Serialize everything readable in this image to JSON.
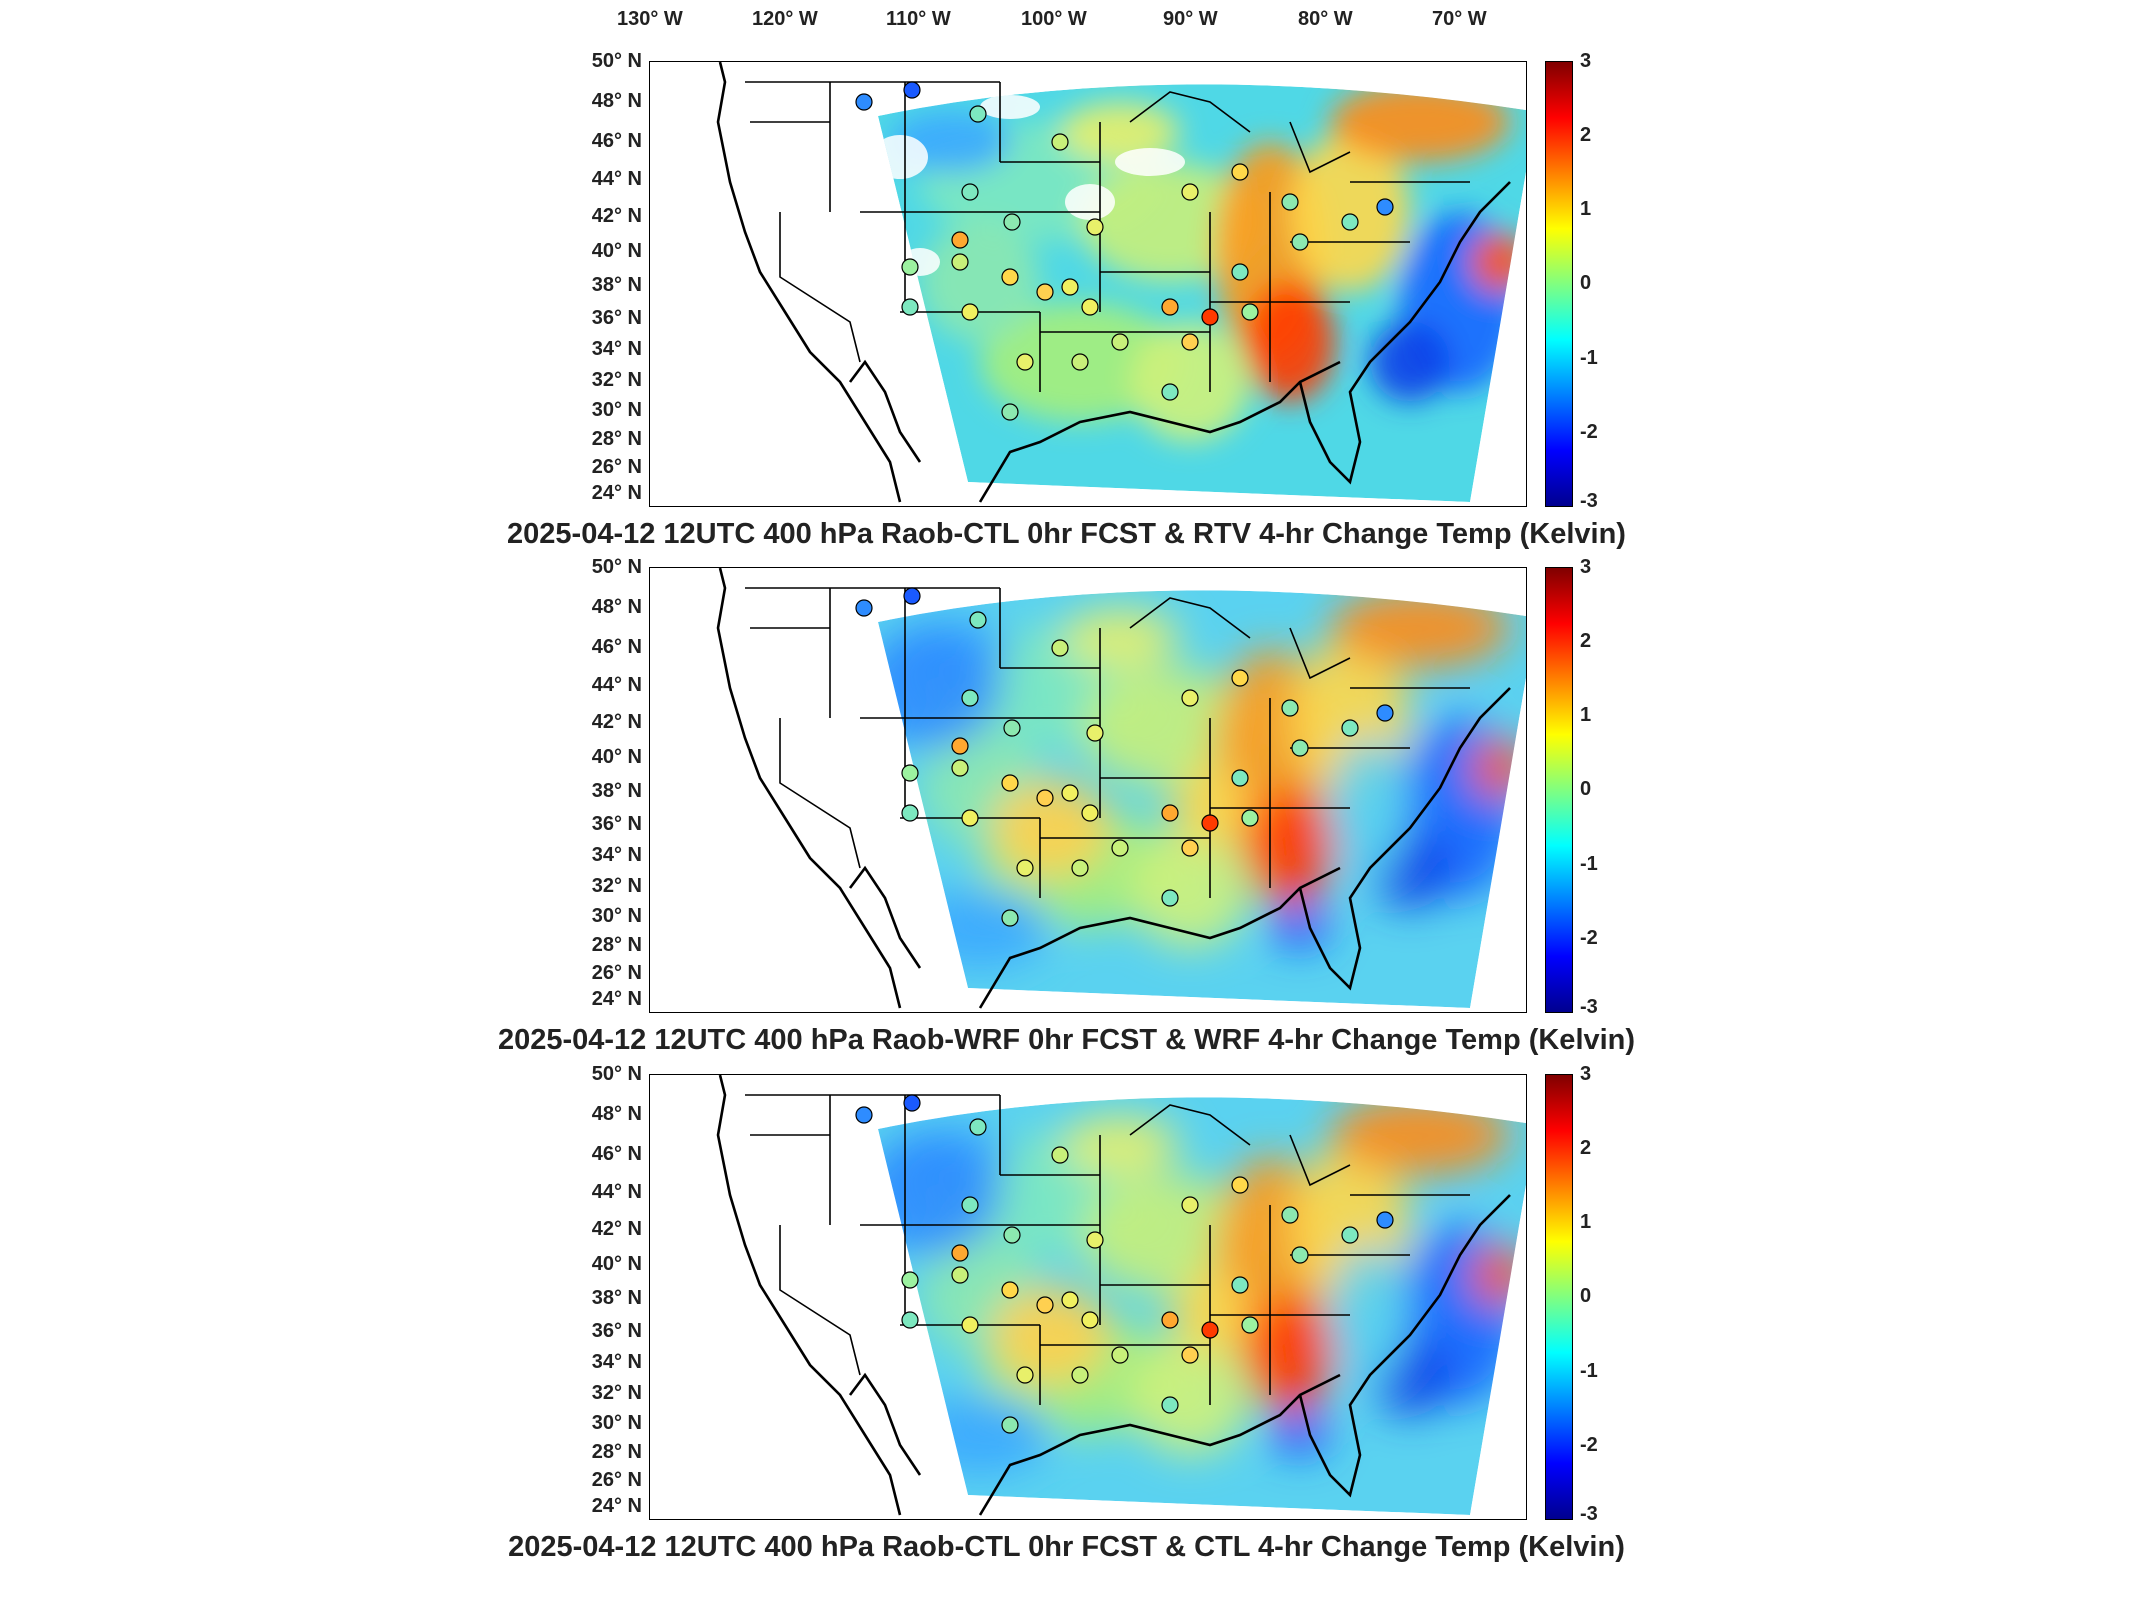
{
  "lon_labels": [
    "130° W",
    "120° W",
    "110° W",
    "100° W",
    "90° W",
    "80° W",
    "70° W"
  ],
  "lat_labels": [
    "50° N",
    "48° N",
    "46° N",
    "44° N",
    "42° N",
    "40° N",
    "38° N",
    "36° N",
    "34° N",
    "32° N",
    "30° N",
    "28° N",
    "26° N",
    "24° N"
  ],
  "colorbar": {
    "ticks": [
      "3",
      "2",
      "1",
      "0",
      "-1",
      "-2",
      "-3"
    ],
    "colors": [
      "#00008f",
      "#0000ff",
      "#0080ff",
      "#00ffff",
      "#80ff80",
      "#ffff00",
      "#ff8000",
      "#ff0000",
      "#800000"
    ]
  },
  "panels": [
    {
      "title": "2025-04-12 12UTC 400 hPa Raob-CTL 0hr FCST & RTV 4-hr Change Temp (Kelvin)"
    },
    {
      "title": "2025-04-12 12UTC 400 hPa Raob-WRF 0hr FCST & WRF 4-hr Change Temp (Kelvin)"
    },
    {
      "title": "2025-04-12 12UTC 400 hPa Raob-CTL 0hr FCST & CTL 4-hr Change Temp (Kelvin)"
    }
  ]
}
